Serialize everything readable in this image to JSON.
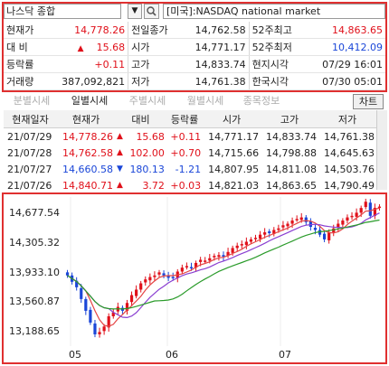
{
  "search": {
    "value": "나스닥 종합",
    "market": "[미국]:NASDAQ national market"
  },
  "info": {
    "rows": [
      {
        "l1": "현재가",
        "v1": "14,778.26",
        "l2": "전일종가",
        "v2": "14,762.58",
        "l3": "52주최고",
        "v3": "14,863.65"
      },
      {
        "l1": "대   비",
        "v1": "15.68",
        "l2": "시가",
        "v2": "14,771.17",
        "l3": "52주최저",
        "v3": "10,412.09"
      },
      {
        "l1": "등락률",
        "v1": "+0.11",
        "l2": "고가",
        "v2": "14,833.74",
        "l3": "현지시각",
        "v3": "07/29 16:01"
      },
      {
        "l1": "거래량",
        "v1": "387,092,821",
        "l2": "저가",
        "v2": "14,761.38",
        "l3": "한국시각",
        "v3": "07/30 05:01"
      }
    ],
    "up_arrow": "▲"
  },
  "tabs": [
    "분별시세",
    "일별시세",
    "주별시세",
    "월별시세",
    "종목정보"
  ],
  "chart_button": "차트",
  "daily": {
    "headers": [
      "현재일자",
      "현재가",
      "대비",
      "등락률",
      "시가",
      "고가",
      "저가"
    ],
    "rows": [
      {
        "date": "21/07/29",
        "price": "14,778.26",
        "dir": "▲",
        "chg": "15.68",
        "rate": "+0.11",
        "open": "14,771.17",
        "high": "14,833.74",
        "low": "14,761.38"
      },
      {
        "date": "21/07/28",
        "price": "14,762.58",
        "dir": "▲",
        "chg": "102.00",
        "rate": "+0.70",
        "open": "14,715.66",
        "high": "14,798.88",
        "low": "14,645.63"
      },
      {
        "date": "21/07/27",
        "price": "14,660.58",
        "dir": "▼",
        "chg": "180.13",
        "rate": "-1.21",
        "open": "14,807.95",
        "high": "14,811.08",
        "low": "14,503.76"
      },
      {
        "date": "21/07/26",
        "price": "14,840.71",
        "dir": "▲",
        "chg": "3.72",
        "rate": "+0.03",
        "open": "14,821.03",
        "high": "14,863.65",
        "low": "14,790.49"
      }
    ]
  },
  "chart_data": {
    "type": "candlestick",
    "y_ticks": [
      "14,677.54",
      "14,305.32",
      "13,933.10",
      "13,560.87",
      "13,188.65"
    ],
    "y_values": [
      14677.54,
      14305.32,
      13933.1,
      13560.87,
      13188.65
    ],
    "x_ticks": [
      "05",
      "06",
      "07"
    ],
    "ylim": [
      13000,
      14900
    ],
    "candles_close": [
      13900,
      13820,
      13750,
      13600,
      13450,
      13300,
      13150,
      13180,
      13250,
      13380,
      13430,
      13500,
      13450,
      13550,
      13650,
      13720,
      13800,
      13850,
      13880,
      13900,
      13940,
      13900,
      13870,
      13880,
      13950,
      14000,
      14020,
      14000,
      14060,
      14100,
      14090,
      14120,
      14150,
      14160,
      14140,
      14200,
      14250,
      14280,
      14300,
      14330,
      14360,
      14380,
      14420,
      14450,
      14440,
      14480,
      14500,
      14540,
      14560,
      14600,
      14620,
      14640,
      14580,
      14520,
      14480,
      14420,
      14360,
      14450,
      14500,
      14560,
      14600,
      14640,
      14660,
      14700,
      14760,
      14840,
      14660,
      14762,
      14778
    ],
    "colors": {
      "up": "#e0101a",
      "down": "#1a46d8",
      "ma_green": "#2a9b2a",
      "ma_red": "#e54545",
      "ma_purple": "#8a3fd1",
      "frame": "#e03030"
    }
  }
}
